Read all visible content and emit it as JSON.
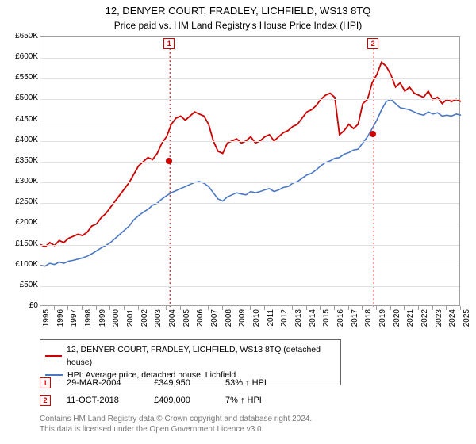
{
  "title": "12, DENYER COURT, FRADLEY, LICHFIELD, WS13 8TQ",
  "subtitle": "Price paid vs. HM Land Registry's House Price Index (HPI)",
  "chart": {
    "type": "line",
    "bg": "#ffffff",
    "border_color": "#a0a0a0",
    "grid_color": "#e0e0e0",
    "ylim": [
      0,
      650
    ],
    "ytick_step": 50,
    "y_tick_labels": [
      "£0",
      "£50K",
      "£100K",
      "£150K",
      "£200K",
      "£250K",
      "£300K",
      "£350K",
      "£400K",
      "£450K",
      "£500K",
      "£550K",
      "£600K",
      "£650K"
    ],
    "x_years": [
      "1995",
      "1996",
      "1997",
      "1998",
      "1999",
      "2000",
      "2001",
      "2002",
      "2003",
      "2004",
      "2005",
      "2006",
      "2007",
      "2008",
      "2009",
      "2010",
      "2011",
      "2012",
      "2013",
      "2014",
      "2015",
      "2016",
      "2017",
      "2018",
      "2019",
      "2020",
      "2021",
      "2022",
      "2023",
      "2024",
      "2025"
    ],
    "series": [
      {
        "name": "12, DENYER COURT, FRADLEY, LICHFIELD, WS13 8TQ (detached house)",
        "color": "#cc0000",
        "width": 1.8,
        "points_y": [
          150,
          145,
          155,
          148,
          160,
          155,
          165,
          170,
          175,
          172,
          180,
          195,
          200,
          215,
          225,
          240,
          255,
          270,
          285,
          300,
          320,
          340,
          350,
          360,
          355,
          370,
          395,
          410,
          440,
          455,
          460,
          450,
          460,
          470,
          465,
          460,
          440,
          400,
          375,
          370,
          395,
          400,
          405,
          395,
          400,
          410,
          395,
          400,
          410,
          415,
          400,
          410,
          420,
          425,
          435,
          440,
          455,
          470,
          475,
          485,
          500,
          510,
          515,
          505,
          415,
          425,
          440,
          430,
          440,
          490,
          500,
          540,
          560,
          590,
          580,
          560,
          530,
          540,
          520,
          530,
          515,
          510,
          505,
          520,
          500,
          505,
          490,
          500,
          495,
          500,
          495
        ]
      },
      {
        "name": "HPI: Average price, detached house, Lichfield",
        "color": "#4a78c4",
        "width": 1.6,
        "points_y": [
          100,
          98,
          105,
          102,
          108,
          105,
          110,
          112,
          115,
          118,
          122,
          128,
          135,
          142,
          148,
          155,
          165,
          175,
          185,
          195,
          210,
          220,
          228,
          235,
          245,
          250,
          260,
          268,
          275,
          280,
          285,
          290,
          295,
          300,
          302,
          298,
          290,
          275,
          260,
          255,
          265,
          270,
          275,
          272,
          270,
          278,
          275,
          278,
          282,
          285,
          278,
          282,
          288,
          290,
          298,
          302,
          310,
          318,
          322,
          330,
          340,
          348,
          352,
          358,
          360,
          368,
          372,
          378,
          380,
          395,
          410,
          430,
          450,
          475,
          495,
          500,
          490,
          480,
          478,
          475,
          470,
          465,
          462,
          470,
          465,
          468,
          460,
          462,
          460,
          465,
          462
        ]
      }
    ],
    "markers": [
      {
        "label": "1",
        "date": "29-MAR-2004",
        "year": 2004.24,
        "y": 350,
        "point_color": "#cc0000",
        "line_color": "#cc0000"
      },
      {
        "label": "2",
        "date": "11-OCT-2018",
        "year": 2018.78,
        "y": 415,
        "point_color": "#cc0000",
        "line_color": "#cc0000"
      }
    ]
  },
  "legend": [
    {
      "color": "#cc0000",
      "label": "12, DENYER COURT, FRADLEY, LICHFIELD, WS13 8TQ (detached house)"
    },
    {
      "color": "#4a78c4",
      "label": "HPI: Average price, detached house, Lichfield"
    }
  ],
  "sales": [
    {
      "marker": "1",
      "date": "29-MAR-2004",
      "price": "£349,950",
      "hpi": "53% ↑ HPI"
    },
    {
      "marker": "2",
      "date": "11-OCT-2018",
      "price": "£409,000",
      "hpi": "7% ↑ HPI"
    }
  ],
  "fineprint_line1": "Contains HM Land Registry data © Crown copyright and database right 2024.",
  "fineprint_line2": "This data is licensed under the Open Government Licence v3.0."
}
